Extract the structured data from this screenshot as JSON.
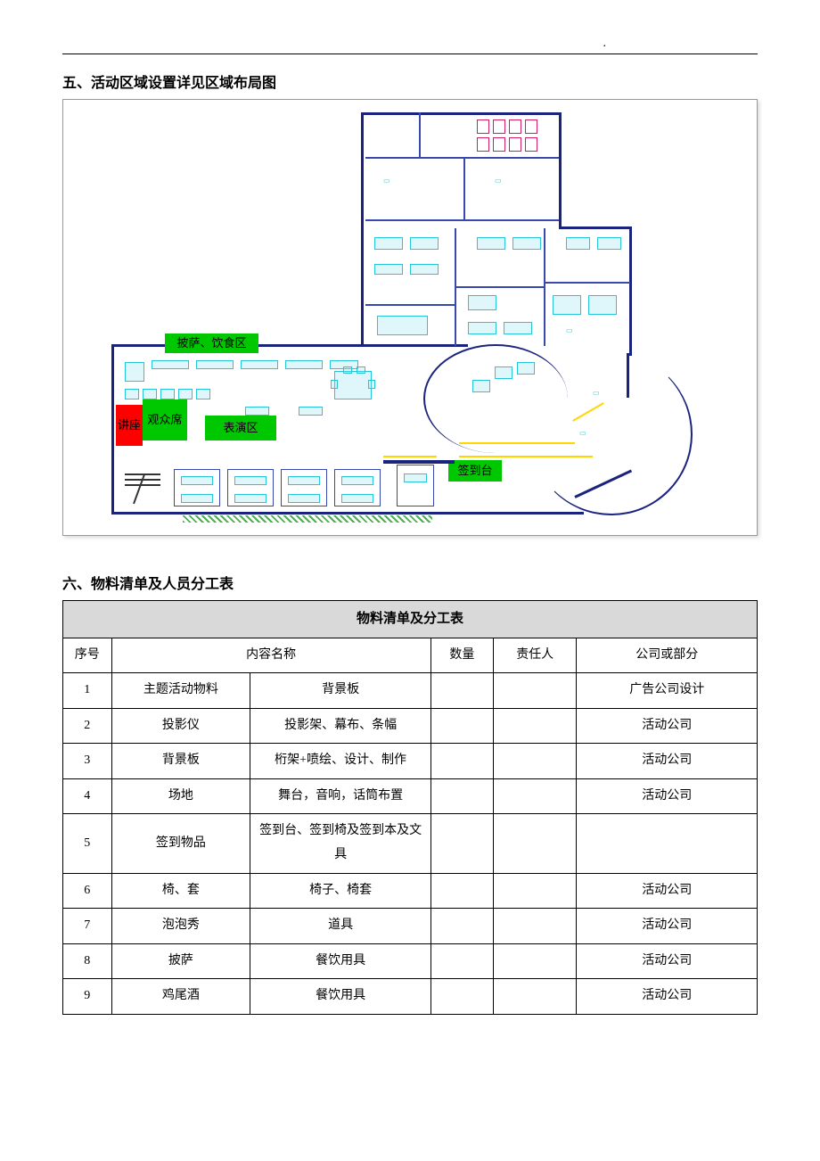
{
  "top_dot": ".",
  "section5_title": "五、活动区域设置详见区域布局图",
  "section6_title": "六、物料清单及人员分工表",
  "plan": {
    "labels": {
      "pizza": "披萨、饮食区",
      "lecture": "讲座",
      "audience": "观众席",
      "stage": "表演区",
      "checkin": "签到台"
    },
    "colors": {
      "green": "#00c800",
      "red": "#ff0000",
      "wall": "#1a237e",
      "cyan": "#26c6da",
      "yellow": "#ffd600",
      "magenta": "#d81b60"
    }
  },
  "table": {
    "title": "物料清单及分工表",
    "headers": [
      "序号",
      "内容名称",
      "",
      "数量",
      "责任人",
      "公司或部分"
    ],
    "header_merged": "内容名称",
    "rows": [
      [
        "1",
        "主题活动物料",
        "背景板",
        "",
        "",
        "广告公司设计"
      ],
      [
        "2",
        "投影仪",
        "投影架、幕布、条幅",
        "",
        "",
        "活动公司"
      ],
      [
        "3",
        "背景板",
        "桁架+喷绘、设计、制作",
        "",
        "",
        "活动公司"
      ],
      [
        "4",
        "场地",
        "舞台，音响，话筒布置",
        "",
        "",
        "活动公司"
      ],
      [
        "5",
        "签到物品",
        "签到台、签到椅及签到本及文具",
        "",
        "",
        ""
      ],
      [
        "6",
        "椅、套",
        "椅子、椅套",
        "",
        "",
        "活动公司"
      ],
      [
        "7",
        "泡泡秀",
        "道具",
        "",
        "",
        "活动公司"
      ],
      [
        "8",
        "披萨",
        "餐饮用具",
        "",
        "",
        "活动公司"
      ],
      [
        "9",
        "鸡尾酒",
        "餐饮用具",
        "",
        "",
        "活动公司"
      ]
    ],
    "col_widths": [
      "7%",
      "18%",
      "26%",
      "9%",
      "12%",
      "28%"
    ]
  }
}
